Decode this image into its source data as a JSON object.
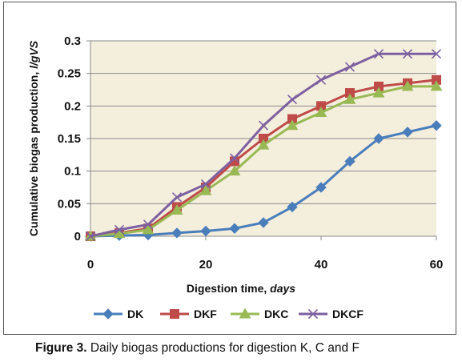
{
  "caption": {
    "label": "Figure 3.",
    "text": " Daily biogas productions for digestion K, C and F"
  },
  "chart_data": {
    "type": "line",
    "title": "",
    "xlabel": "Digestion time, ",
    "xlabel_italic": "days",
    "ylabel": "Cumulative biogas production, ",
    "ylabel_italic": "l/gVS",
    "xlim": [
      0,
      60
    ],
    "ylim": [
      0,
      0.3
    ],
    "xticks": [
      "0",
      "20",
      "40",
      "60"
    ],
    "yticks": [
      "0",
      "0.05",
      "0.1",
      "0.15",
      "0.2",
      "0.25",
      "0.3"
    ],
    "grid": "horizontal",
    "legend_position": "bottom",
    "plot_background": "#f4eedd",
    "x": [
      0,
      5,
      10,
      15,
      20,
      25,
      30,
      35,
      40,
      45,
      50,
      55,
      60
    ],
    "series": [
      {
        "name": "DK",
        "color": "#4a7ebb",
        "marker": "diamond",
        "values": [
          0,
          0.001,
          0.002,
          0.005,
          0.008,
          0.012,
          0.021,
          0.045,
          0.075,
          0.115,
          0.15,
          0.16,
          0.17
        ]
      },
      {
        "name": "DKF",
        "color": "#be4b48",
        "marker": "square",
        "values": [
          0,
          0.005,
          0.012,
          0.045,
          0.075,
          0.115,
          0.15,
          0.18,
          0.2,
          0.22,
          0.23,
          0.235,
          0.24
        ]
      },
      {
        "name": "DKC",
        "color": "#98b954",
        "marker": "triangle",
        "values": [
          0,
          0.004,
          0.01,
          0.04,
          0.07,
          0.1,
          0.14,
          0.17,
          0.19,
          0.21,
          0.22,
          0.23,
          0.23
        ]
      },
      {
        "name": "DKCF",
        "color": "#7d60a0",
        "marker": "x",
        "values": [
          0,
          0.01,
          0.018,
          0.06,
          0.08,
          0.12,
          0.17,
          0.21,
          0.24,
          0.26,
          0.28,
          0.28,
          0.28
        ]
      }
    ]
  }
}
